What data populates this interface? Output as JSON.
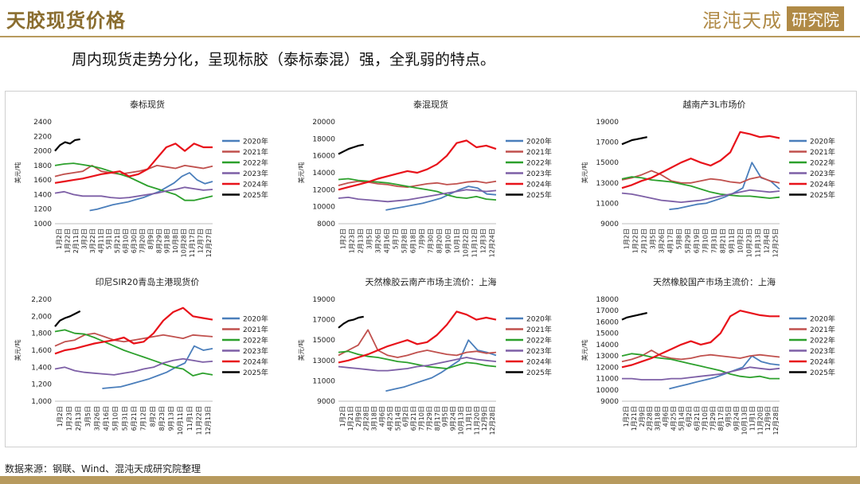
{
  "header": {
    "title": "天胶现货价格",
    "logo_main": "混沌天成",
    "logo_box": "研究院"
  },
  "subtitle": "周内现货走势分化，呈现标胶（泰标泰混）强，全乳弱的特点。",
  "footer": "数据来源：钢联、Wind、混沌天成研究院整理",
  "colors": {
    "2020年": "#4a7ebb",
    "2021年": "#c0504d",
    "2022年": "#2ca02c",
    "2023年": "#7d5fa6",
    "2024年": "#e8121a",
    "2025年": "#000000"
  },
  "chart_data": [
    {
      "type": "line",
      "title": "泰标现货",
      "ylabel": "美元/吨",
      "ylim": [
        1000,
        2400
      ],
      "yticks": [
        "1000",
        "1200",
        "1400",
        "1600",
        "1800",
        "2000",
        "2200",
        "2400"
      ],
      "xticks": [
        "1月2日",
        "1月22日",
        "2月11日",
        "3月2日",
        "3月22日",
        "4月11日",
        "5月1日",
        "5月21日",
        "6月10日",
        "6月30日",
        "7月20日",
        "8月9日",
        "8月29日",
        "9月18日",
        "10月8日",
        "10月28日",
        "11月17日",
        "12月7日",
        "12月27日"
      ],
      "legend": [
        "2020年",
        "2021年",
        "2022年",
        "2023年",
        "2024年",
        "2025年"
      ],
      "series": [
        {
          "name": "2020年",
          "start": 0.22,
          "end": 1.0,
          "vals": [
            1180,
            1200,
            1230,
            1260,
            1280,
            1300,
            1330,
            1360,
            1400,
            1440,
            1500,
            1560,
            1650,
            1700,
            1600,
            1550,
            1580
          ]
        },
        {
          "name": "2021年",
          "start": 0.0,
          "end": 1.0,
          "vals": [
            1650,
            1680,
            1700,
            1720,
            1800,
            1720,
            1700,
            1680,
            1700,
            1720,
            1750,
            1800,
            1780,
            1760,
            1800,
            1780,
            1760,
            1790
          ]
        },
        {
          "name": "2022年",
          "start": 0.0,
          "end": 1.0,
          "vals": [
            1800,
            1820,
            1830,
            1810,
            1790,
            1760,
            1720,
            1680,
            1640,
            1580,
            1520,
            1480,
            1440,
            1400,
            1320,
            1320,
            1350,
            1380
          ]
        },
        {
          "name": "2023年",
          "start": 0.0,
          "end": 1.0,
          "vals": [
            1420,
            1440,
            1400,
            1380,
            1380,
            1380,
            1360,
            1350,
            1360,
            1380,
            1400,
            1420,
            1450,
            1470,
            1500,
            1480,
            1460,
            1470
          ]
        },
        {
          "name": "2024年",
          "start": 0.0,
          "end": 1.0,
          "vals": [
            1560,
            1580,
            1600,
            1620,
            1650,
            1680,
            1700,
            1720,
            1650,
            1680,
            1750,
            1900,
            2050,
            2100,
            2000,
            2100,
            2050,
            2050
          ]
        },
        {
          "name": "2025年",
          "start": 0.0,
          "end": 0.16,
          "vals": [
            2000,
            2080,
            2120,
            2100,
            2150,
            2160
          ]
        }
      ]
    },
    {
      "type": "line",
      "title": "泰混现货",
      "ylabel": "美元/吨",
      "ylim": [
        8000,
        20000
      ],
      "yticks": [
        "8000",
        "10000",
        "12000",
        "14000",
        "16000",
        "18000",
        "20000"
      ],
      "xticks": [
        "1月2日",
        "1月23日",
        "2月13日",
        "3月5日",
        "3月26日",
        "4月16日",
        "5月7日",
        "5月28日",
        "6月18日",
        "7月9日",
        "7月30日",
        "8月20日",
        "9月10日",
        "10月1日",
        "10月22日",
        "11月12日",
        "12月3日",
        "12月24日"
      ],
      "legend": [
        "2020年",
        "2021年",
        "2022年",
        "2023年",
        "2024年",
        "2025年"
      ],
      "series": [
        {
          "name": "2020年",
          "start": 0.3,
          "end": 1.0,
          "vals": [
            9600,
            9800,
            10000,
            10200,
            10400,
            10700,
            11000,
            11500,
            12000,
            12400,
            12200,
            11500,
            11400
          ]
        },
        {
          "name": "2021年",
          "start": 0.0,
          "end": 1.0,
          "vals": [
            12500,
            12800,
            13000,
            12900,
            12700,
            12600,
            12400,
            12300,
            12500,
            12700,
            12800,
            12600,
            12700,
            12900,
            13000,
            12800,
            13000
          ]
        },
        {
          "name": "2022年",
          "start": 0.0,
          "end": 1.0,
          "vals": [
            13200,
            13300,
            13100,
            13000,
            12900,
            12800,
            12600,
            12400,
            12200,
            12000,
            11800,
            11400,
            11100,
            11000,
            11200,
            10900,
            10800
          ]
        },
        {
          "name": "2023年",
          "start": 0.0,
          "end": 1.0,
          "vals": [
            11000,
            11100,
            10900,
            10800,
            10700,
            10600,
            10700,
            10800,
            11000,
            11200,
            11400,
            11600,
            11800,
            12000,
            11900,
            11800,
            11900
          ]
        },
        {
          "name": "2024年",
          "start": 0.0,
          "end": 1.0,
          "vals": [
            12000,
            12300,
            12600,
            12900,
            13300,
            13600,
            13900,
            14200,
            14000,
            14400,
            15000,
            16000,
            17500,
            17800,
            17000,
            17200,
            16800
          ]
        },
        {
          "name": "2025年",
          "start": 0.0,
          "end": 0.16,
          "vals": [
            16200,
            16500,
            16800,
            17000,
            17200,
            17300
          ]
        }
      ]
    },
    {
      "type": "line",
      "title": "越南产3L市场价",
      "ylabel": "美元/吨",
      "ylim": [
        9000,
        19000
      ],
      "yticks": [
        "9000",
        "11000",
        "13000",
        "15000",
        "17000",
        "19000"
      ],
      "xticks": [
        "1月2日",
        "1月22日",
        "2月12日",
        "3月5日",
        "3月26日",
        "4月17日",
        "5月8日",
        "5月29日",
        "6月19日",
        "7月10日",
        "7月31日",
        "8月21日",
        "9月11日",
        "10月2日",
        "10月23日",
        "11月13日",
        "12月4日",
        "12月25日"
      ],
      "legend": [
        "2020年",
        "2021年",
        "2022年",
        "2023年",
        "2024年",
        "2025年"
      ],
      "series": [
        {
          "name": "2020年",
          "start": 0.3,
          "end": 1.0,
          "vals": [
            10400,
            10500,
            10700,
            10900,
            11000,
            11300,
            11600,
            12000,
            12500,
            15000,
            13500,
            13200,
            12400
          ]
        },
        {
          "name": "2021年",
          "start": 0.0,
          "end": 1.0,
          "vals": [
            13300,
            13500,
            13800,
            14200,
            13800,
            13200,
            13000,
            13000,
            13200,
            13400,
            13300,
            13100,
            13000,
            13400,
            13600,
            13200,
            13000
          ]
        },
        {
          "name": "2022年",
          "start": 0.0,
          "end": 1.0,
          "vals": [
            13400,
            13600,
            13500,
            13300,
            13200,
            13100,
            12900,
            12700,
            12400,
            12100,
            11900,
            11800,
            11700,
            11700,
            11600,
            11500,
            11600
          ]
        },
        {
          "name": "2023年",
          "start": 0.0,
          "end": 1.0,
          "vals": [
            12000,
            11900,
            11700,
            11500,
            11300,
            11200,
            11100,
            11200,
            11300,
            11500,
            11700,
            11900,
            12100,
            12300,
            12200,
            12100,
            12200
          ]
        },
        {
          "name": "2024年",
          "start": 0.0,
          "end": 1.0,
          "vals": [
            12500,
            12800,
            13200,
            13500,
            14000,
            14500,
            15000,
            15400,
            15000,
            14700,
            15200,
            16000,
            18000,
            17800,
            17500,
            17600,
            17400
          ]
        },
        {
          "name": "2025年",
          "start": 0.0,
          "end": 0.16,
          "vals": [
            16800,
            17000,
            17200,
            17300,
            17400,
            17500
          ]
        }
      ]
    },
    {
      "type": "line",
      "title": "印尼SIR20青岛主港现货价",
      "ylabel": "美元/吨",
      "ylim": [
        1000,
        2200
      ],
      "yticks": [
        "1,000",
        "1,200",
        "1,400",
        "1,600",
        "1,800",
        "2,000",
        "2,200"
      ],
      "xticks": [
        "1月2日",
        "1月23日",
        "2月13日",
        "3月5日",
        "3月26日",
        "4月16日",
        "5月10日",
        "5月31日",
        "6月21日",
        "7月12日",
        "8月2日",
        "8月23日",
        "9月13日",
        "10月11日",
        "11月1日",
        "11月22日",
        "12月13日"
      ],
      "legend": [
        "2020年",
        "2021年",
        "2022年",
        "2023年",
        "2024年",
        "2025年"
      ],
      "series": [
        {
          "name": "2020年",
          "start": 0.3,
          "end": 1.0,
          "vals": [
            1150,
            1160,
            1170,
            1200,
            1230,
            1260,
            1300,
            1340,
            1400,
            1450,
            1650,
            1600,
            1620
          ]
        },
        {
          "name": "2021年",
          "start": 0.0,
          "end": 1.0,
          "vals": [
            1650,
            1700,
            1720,
            1780,
            1800,
            1760,
            1720,
            1700,
            1720,
            1740,
            1760,
            1780,
            1760,
            1740,
            1780,
            1770,
            1760
          ]
        },
        {
          "name": "2022年",
          "start": 0.0,
          "end": 1.0,
          "vals": [
            1820,
            1840,
            1800,
            1790,
            1750,
            1700,
            1650,
            1600,
            1560,
            1520,
            1480,
            1440,
            1400,
            1380,
            1300,
            1330,
            1310
          ]
        },
        {
          "name": "2023年",
          "start": 0.0,
          "end": 1.0,
          "vals": [
            1380,
            1400,
            1360,
            1340,
            1330,
            1320,
            1310,
            1330,
            1350,
            1380,
            1400,
            1450,
            1480,
            1500,
            1480,
            1460,
            1470
          ]
        },
        {
          "name": "2024年",
          "start": 0.0,
          "end": 1.0,
          "vals": [
            1560,
            1600,
            1620,
            1650,
            1680,
            1700,
            1720,
            1750,
            1680,
            1700,
            1800,
            1950,
            2050,
            2100,
            2000,
            1980,
            1960
          ]
        },
        {
          "name": "2025年",
          "start": 0.0,
          "end": 0.16,
          "vals": [
            1880,
            1950,
            1980,
            2000,
            2030,
            2060
          ]
        }
      ]
    },
    {
      "type": "line",
      "title": "天然橡胶云南产市场主流价：上海",
      "ylabel": "美元/吨",
      "ylim": [
        9000,
        19000
      ],
      "yticks": [
        "9000",
        "11000",
        "13000",
        "15000",
        "17000",
        "19000"
      ],
      "xticks": [
        "1月2日",
        "1月21日",
        "2月9日",
        "2月28日",
        "3月18日",
        "4月6日",
        "4月25日",
        "5月14日",
        "6月2日",
        "6月21日",
        "7月10日",
        "7月29日",
        "8月17日",
        "9月5日",
        "9月24日",
        "10月13日",
        "11月1日",
        "11月20日",
        "12月9日",
        "12月28日"
      ],
      "legend": [
        "2020年",
        "2021年",
        "2022年",
        "2023年",
        "2024年",
        "2025年"
      ],
      "series": [
        {
          "name": "2020年",
          "start": 0.3,
          "end": 1.0,
          "vals": [
            10000,
            10200,
            10400,
            10700,
            11000,
            11300,
            11800,
            12400,
            13000,
            15000,
            14000,
            13800,
            13500
          ]
        },
        {
          "name": "2021年",
          "start": 0.0,
          "end": 1.0,
          "vals": [
            13500,
            14000,
            14500,
            16000,
            14000,
            13500,
            13300,
            13500,
            13800,
            14000,
            13800,
            13600,
            13500,
            13800,
            13900,
            13700,
            13800
          ]
        },
        {
          "name": "2022年",
          "start": 0.0,
          "end": 1.0,
          "vals": [
            13800,
            13900,
            13600,
            13400,
            13300,
            13100,
            12900,
            12800,
            12600,
            12400,
            12300,
            12200,
            12500,
            12800,
            12700,
            12500,
            12400
          ]
        },
        {
          "name": "2023年",
          "start": 0.0,
          "end": 1.0,
          "vals": [
            12400,
            12300,
            12200,
            12100,
            12000,
            12000,
            12100,
            12200,
            12400,
            12500,
            12700,
            12900,
            13100,
            13300,
            13100,
            13000,
            12900
          ]
        },
        {
          "name": "2024年",
          "start": 0.0,
          "end": 1.0,
          "vals": [
            12800,
            13000,
            13300,
            13600,
            14000,
            14400,
            14700,
            15000,
            14600,
            14800,
            15500,
            16500,
            17800,
            17500,
            17000,
            17200,
            17000
          ]
        },
        {
          "name": "2025年",
          "start": 0.0,
          "end": 0.16,
          "vals": [
            16200,
            16600,
            16900,
            17000,
            17200,
            17300
          ]
        }
      ]
    },
    {
      "type": "line",
      "title": "天然橡胶国产市场主流价：上海",
      "ylabel": "美元/吨",
      "ylim": [
        9000,
        18000
      ],
      "yticks": [
        "9000",
        "10000",
        "11000",
        "12000",
        "13000",
        "14000",
        "15000",
        "16000",
        "17000",
        "18000"
      ],
      "xticks": [
        "1月2日",
        "1月21日",
        "2月9日",
        "2月28日",
        "3月18日",
        "4月6日",
        "4月25日",
        "5月14日",
        "6月2日",
        "6月21日",
        "7月10日",
        "7月29日",
        "8月17日",
        "9月5日",
        "9月24日",
        "10月13日",
        "11月1日",
        "11月20日",
        "12月9日",
        "12月28日"
      ],
      "legend": [
        "2020年",
        "2021年",
        "2022年",
        "2023年",
        "2024年",
        "2025年"
      ],
      "series": [
        {
          "name": "2020年",
          "start": 0.3,
          "end": 1.0,
          "vals": [
            10100,
            10300,
            10500,
            10700,
            10900,
            11100,
            11400,
            11700,
            12000,
            13000,
            12500,
            12300,
            12200
          ]
        },
        {
          "name": "2021年",
          "start": 0.0,
          "end": 1.0,
          "vals": [
            12500,
            12700,
            13000,
            13500,
            13000,
            12800,
            12700,
            12800,
            13000,
            13100,
            13000,
            12900,
            12800,
            13000,
            13100,
            13000,
            12900
          ]
        },
        {
          "name": "2022年",
          "start": 0.0,
          "end": 1.0,
          "vals": [
            13000,
            13200,
            13100,
            12900,
            12800,
            12700,
            12500,
            12300,
            12100,
            11900,
            11700,
            11400,
            11200,
            11100,
            11200,
            11000,
            11000
          ]
        },
        {
          "name": "2023年",
          "start": 0.0,
          "end": 1.0,
          "vals": [
            11000,
            11000,
            10900,
            10900,
            10900,
            11000,
            11000,
            11100,
            11200,
            11300,
            11400,
            11600,
            11800,
            12000,
            11900,
            11800,
            11900
          ]
        },
        {
          "name": "2024年",
          "start": 0.0,
          "end": 1.0,
          "vals": [
            12000,
            12200,
            12500,
            12800,
            13200,
            13600,
            14000,
            14300,
            14000,
            14200,
            15000,
            16500,
            17000,
            16800,
            16600,
            16500,
            16500
          ]
        },
        {
          "name": "2025年",
          "start": 0.0,
          "end": 0.16,
          "vals": [
            16200,
            16400,
            16500,
            16600,
            16700,
            16800
          ]
        }
      ]
    }
  ]
}
